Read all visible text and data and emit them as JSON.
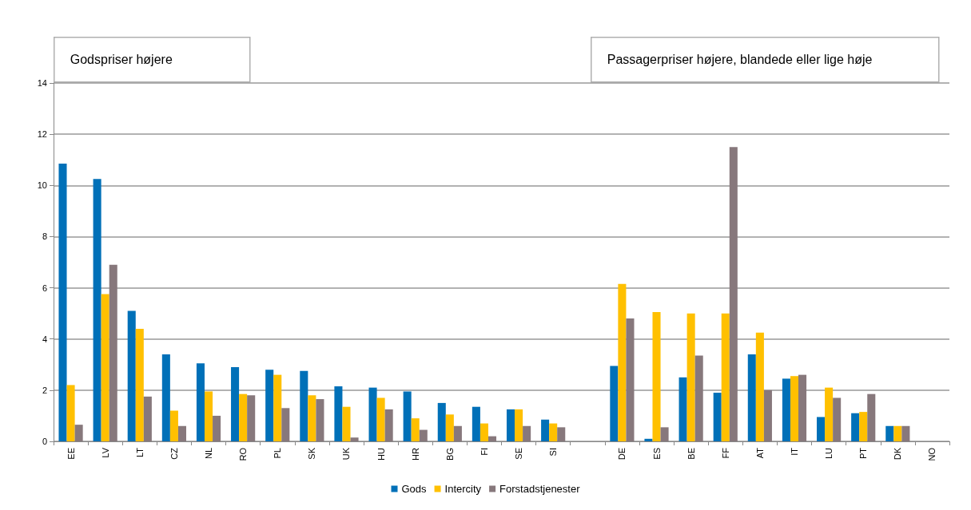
{
  "chart_data": {
    "type": "bar",
    "categories": [
      "EE",
      "LV",
      "LT",
      "CZ",
      "NL",
      "RO",
      "PL",
      "SK",
      "UK",
      "HU",
      "HR",
      "BG",
      "FI",
      "SE",
      "SI",
      null,
      "DE",
      "ES",
      "BE",
      "FF",
      "AT",
      "IT",
      "LU",
      "PT",
      "DK",
      "NO"
    ],
    "series": [
      {
        "name": "Gods",
        "color": "#0070b8",
        "values": [
          10.85,
          10.25,
          5.1,
          3.4,
          3.05,
          2.9,
          2.8,
          2.75,
          2.15,
          2.1,
          1.95,
          1.5,
          1.35,
          1.25,
          0.85,
          null,
          2.95,
          0.1,
          2.5,
          1.9,
          3.4,
          2.45,
          0.95,
          1.1,
          0.6,
          null
        ]
      },
      {
        "name": "Intercity",
        "color": "#ffc000",
        "values": [
          2.2,
          5.75,
          4.4,
          1.2,
          1.95,
          1.85,
          2.6,
          1.8,
          1.35,
          1.7,
          0.9,
          1.05,
          0.7,
          1.25,
          0.7,
          null,
          6.15,
          5.05,
          5.0,
          5.0,
          4.25,
          2.55,
          2.1,
          1.15,
          0.6,
          null
        ]
      },
      {
        "name": "Forstadstjenester",
        "color": "#87787c",
        "values": [
          0.65,
          6.9,
          1.75,
          0.6,
          1.0,
          1.8,
          1.3,
          1.65,
          0.15,
          1.25,
          0.45,
          0.6,
          0.2,
          0.6,
          0.55,
          null,
          4.8,
          0.55,
          3.35,
          11.5,
          2.0,
          2.6,
          1.7,
          1.85,
          0.6,
          null
        ]
      }
    ],
    "ylim": [
      0,
      14
    ],
    "yticks": [
      0,
      2,
      4,
      6,
      8,
      10,
      12,
      14
    ],
    "grid": "y",
    "legend": "bottom",
    "annotations": [
      "Godspriser højere",
      "Passagerpriser højere, blandede eller lige høje"
    ]
  }
}
